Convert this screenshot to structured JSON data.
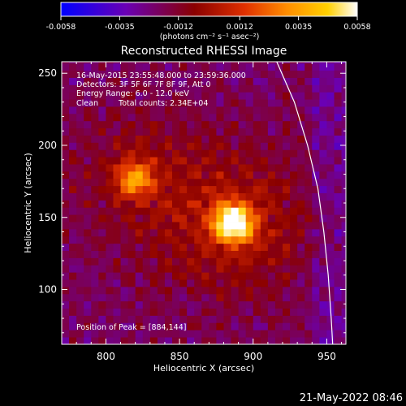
{
  "chart_data": {
    "type": "heatmap",
    "title": "Reconstructed RHESSI Image",
    "xlabel": "Heliocentric X (arcsec)",
    "ylabel": "Heliocentric Y (arcsec)",
    "xlim": [
      770,
      963
    ],
    "ylim": [
      62,
      258
    ],
    "xticks": [
      800,
      850,
      900,
      950
    ],
    "yticks": [
      100,
      150,
      200,
      250
    ],
    "colorbar": {
      "min": -0.0058,
      "max": 0.0058,
      "ticks": [
        "-0.0058",
        "-0.0035",
        "-0.0012",
        "0.0012",
        "0.0035",
        "0.0058"
      ],
      "tick_values": [
        -0.0058,
        -0.0035,
        -0.0012,
        0.0012,
        0.0035,
        0.0058
      ],
      "unit_label": "(photons cm⁻² s⁻¹ asec⁻²)",
      "colors": [
        "#0000ff",
        "#6a00b4",
        "#8a0000",
        "#e03000",
        "#ff8c00",
        "#ffd000",
        "#ffffff"
      ]
    },
    "annotations": [
      "16-May-2015 23:55:48.000 to 23:59:36.000",
      "Detectors: 3F 5F 6F 7F 8F 9F, Att 0",
      "Energy Range: 6.0 - 12.0 keV",
      "Clean",
      "Total counts: 2.34E+04"
    ],
    "peak_label": "Position of Peak = [884,144]",
    "sources": [
      {
        "x": 884,
        "y": 144,
        "peak_fraction": 1.0
      },
      {
        "x": 818,
        "y": 175,
        "peak_fraction": 0.55
      }
    ],
    "limb_curve": [
      {
        "x": 916,
        "y": 258
      },
      {
        "x": 928,
        "y": 230
      },
      {
        "x": 937,
        "y": 200
      },
      {
        "x": 944,
        "y": 170
      },
      {
        "x": 948,
        "y": 140
      },
      {
        "x": 951,
        "y": 110
      },
      {
        "x": 953,
        "y": 80
      },
      {
        "x": 954,
        "y": 62
      }
    ]
  },
  "footer": {
    "timestamp": "21-May-2022 08:46"
  }
}
